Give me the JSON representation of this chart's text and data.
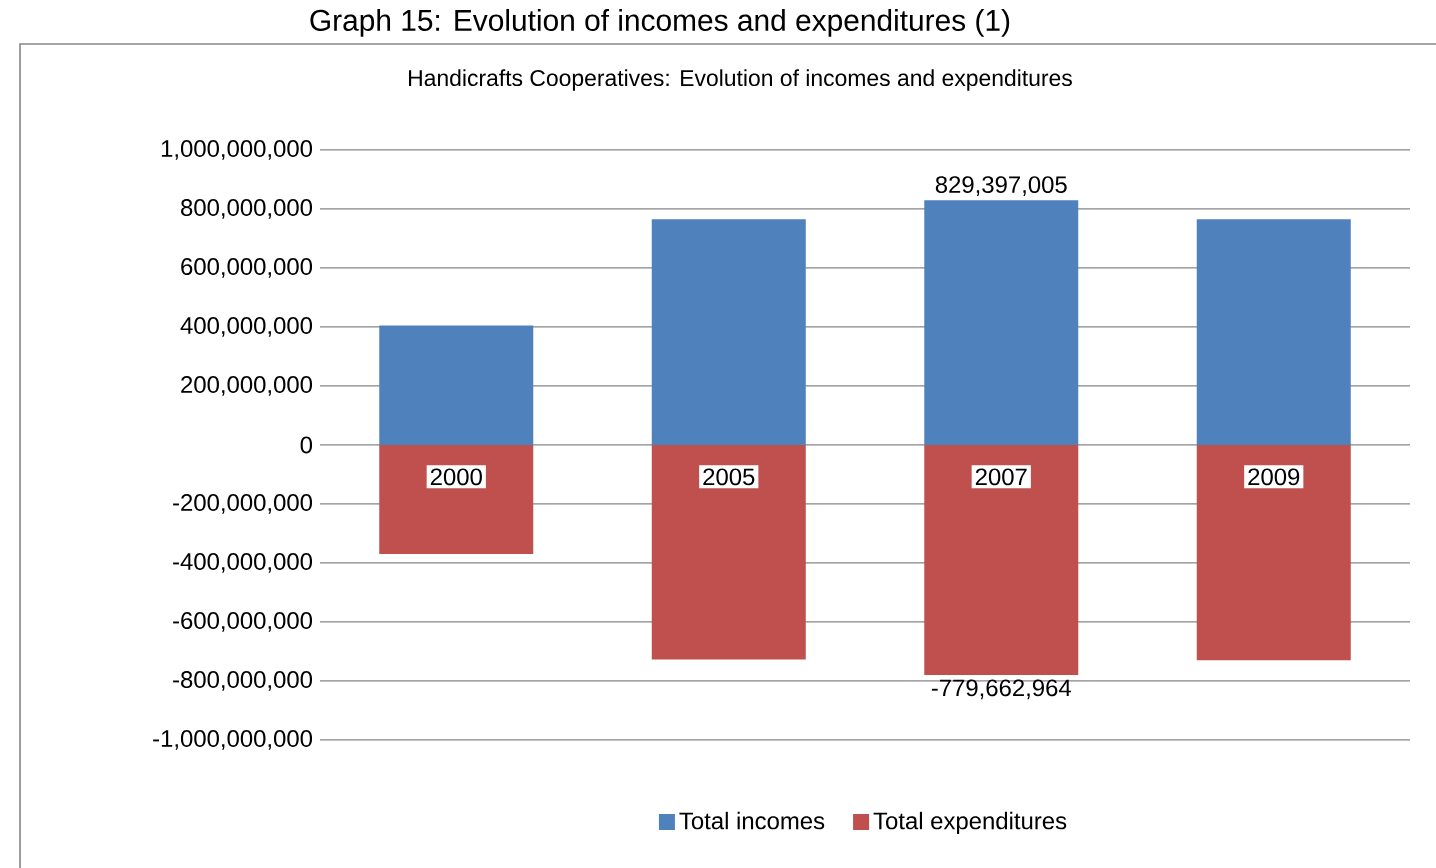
{
  "chart_data": {
    "type": "bar",
    "title": "Handicrafts Cooperatives: Evolution of incomes and expenditures",
    "annotations": [
      "Graph 15: Evolution of incomes and expenditures (1)"
    ],
    "categories": [
      "2000",
      "2005",
      "2007",
      "2009"
    ],
    "stacked": true,
    "series": [
      {
        "name": "Total incomes",
        "color": "#4f81bd",
        "values": [
          405000000,
          765000000,
          829397005,
          765000000
        ],
        "value_labels": [
          null,
          null,
          "829,397,005",
          null
        ]
      },
      {
        "name": "Total expenditures",
        "color": "#c0504d",
        "values": [
          -370000000,
          -727000000,
          -779662964,
          -730000000
        ],
        "value_labels": [
          null,
          null,
          "-779,662,964",
          null
        ]
      }
    ],
    "ylim": [
      -1000000000,
      1000000000
    ],
    "yticks": [
      {
        "value": -1000000000,
        "label": "-1,000,000,000"
      },
      {
        "value": -800000000,
        "label": "-800,000,000"
      },
      {
        "value": -600000000,
        "label": "-600,000,000"
      },
      {
        "value": -400000000,
        "label": "-400,000,000"
      },
      {
        "value": -200000000,
        "label": "-200,000,000"
      },
      {
        "value": 0,
        "label": "0"
      },
      {
        "value": 200000000,
        "label": "200,000,000"
      },
      {
        "value": 400000000,
        "label": "400,000,000"
      },
      {
        "value": 600000000,
        "label": "600,000,000"
      },
      {
        "value": 800000000,
        "label": "800,000,000"
      },
      {
        "value": 1000000000,
        "label": "1,000,000,000"
      }
    ],
    "grid": "y",
    "legend": "bottom"
  }
}
